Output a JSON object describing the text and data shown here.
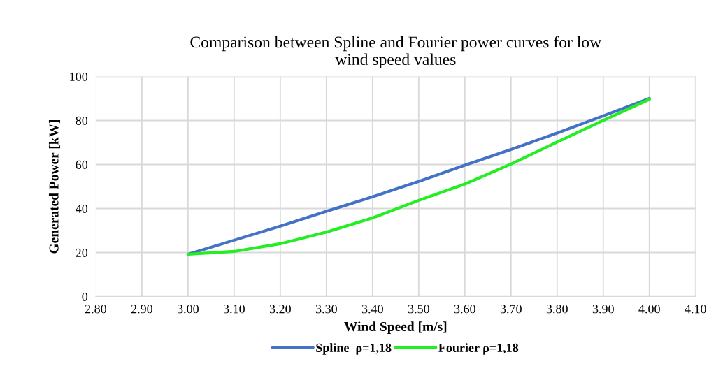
{
  "chart_data": {
    "type": "line",
    "title": "Comparison between Spline and Fourier power curves for low\nwind speed values",
    "xlabel": "Wind Speed [m/s]",
    "ylabel": "Generated Power [kW]",
    "x": [
      3.0,
      3.1,
      3.2,
      3.3,
      3.4,
      3.5,
      3.6,
      3.7,
      3.8,
      3.9,
      4.0
    ],
    "series": [
      {
        "name": "Spline  ρ=1,18",
        "color": "#4472c4",
        "values": [
          19.2,
          25.6,
          32.0,
          38.7,
          45.3,
          52.3,
          59.7,
          66.8,
          74.3,
          82.1,
          90
        ]
      },
      {
        "name": "Fourier ρ=1,18",
        "color": "#22ee22",
        "values": [
          19.2,
          20.5,
          24.0,
          29.3,
          35.7,
          43.7,
          51.1,
          60.2,
          70.2,
          80.0,
          89.6
        ]
      }
    ],
    "xlim": [
      2.8,
      4.1
    ],
    "xticks": [
      {
        "value": 2.8,
        "label": "2.80"
      },
      {
        "value": 2.9,
        "label": "2.90"
      },
      {
        "value": 3.0,
        "label": "3.00"
      },
      {
        "value": 3.1,
        "label": "3.10"
      },
      {
        "value": 3.2,
        "label": "3.20"
      },
      {
        "value": 3.3,
        "label": "3.30"
      },
      {
        "value": 3.4,
        "label": "3.40"
      },
      {
        "value": 3.5,
        "label": "3.50"
      },
      {
        "value": 3.6,
        "label": "3.60"
      },
      {
        "value": 3.7,
        "label": "3.70"
      },
      {
        "value": 3.8,
        "label": "3.80"
      },
      {
        "value": 3.9,
        "label": "3.90"
      },
      {
        "value": 4.0,
        "label": "4.00"
      },
      {
        "value": 4.1,
        "label": "4.10"
      }
    ],
    "ylim": [
      0,
      100
    ],
    "yticks": [
      0,
      20,
      40,
      60,
      80,
      100
    ],
    "grid": true,
    "legend": "bottom",
    "marker": "none",
    "line_style": "solid"
  }
}
